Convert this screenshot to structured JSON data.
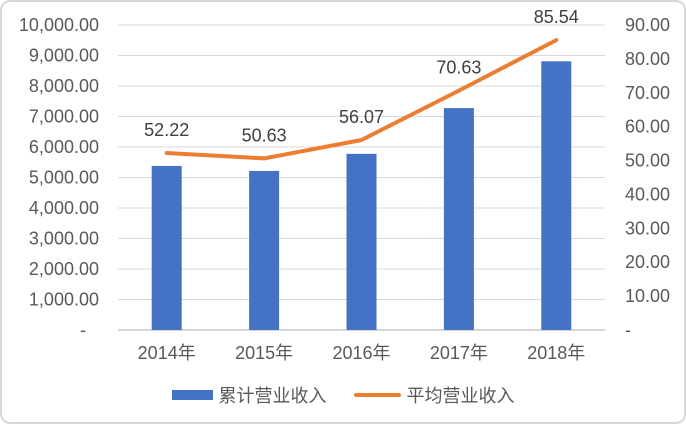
{
  "chart_data": {
    "type": "combo-bar-line",
    "title": "",
    "categories": [
      "2014年",
      "2015年",
      "2016年",
      "2017年",
      "2018年"
    ],
    "series": [
      {
        "name": "累计营业收入",
        "type": "bar",
        "axis": "left",
        "color": "#4472C4",
        "values": [
          5380,
          5215,
          5775,
          7275,
          8810
        ]
      },
      {
        "name": "平均营业收入",
        "type": "line",
        "axis": "right",
        "color": "#ED7D31",
        "values": [
          52.22,
          50.63,
          56.07,
          70.63,
          85.54
        ],
        "data_labels": [
          "52.22",
          "50.63",
          "56.07",
          "70.63",
          "85.54"
        ]
      }
    ],
    "left_axis": {
      "min": 0,
      "max": 10000,
      "step": 1000,
      "tick_labels": [
        "10,000.00",
        "9,000.00",
        "8,000.00",
        "7,000.00",
        "6,000.00",
        "5,000.00",
        "4,000.00",
        "3,000.00",
        "2,000.00",
        "1,000.00",
        "-"
      ]
    },
    "right_axis": {
      "min": 0,
      "max": 90,
      "step": 10,
      "tick_labels": [
        "90.00",
        "80.00",
        "70.00",
        "60.00",
        "50.00",
        "40.00",
        "30.00",
        "20.00",
        "10.00",
        "-"
      ]
    },
    "grid": true,
    "legend_position": "bottom"
  },
  "legend": {
    "bar_label": "累计营业收入",
    "line_label": "平均营业收入"
  },
  "colors": {
    "bar": "#4472C4",
    "line": "#ED7D31",
    "axis_text": "#595959",
    "data_label_text": "#404040",
    "gridline": "#D9D9D9",
    "axis_line": "#BFBFBF",
    "frame_border": "#D8D8D8",
    "background": "#FFFFFF"
  }
}
